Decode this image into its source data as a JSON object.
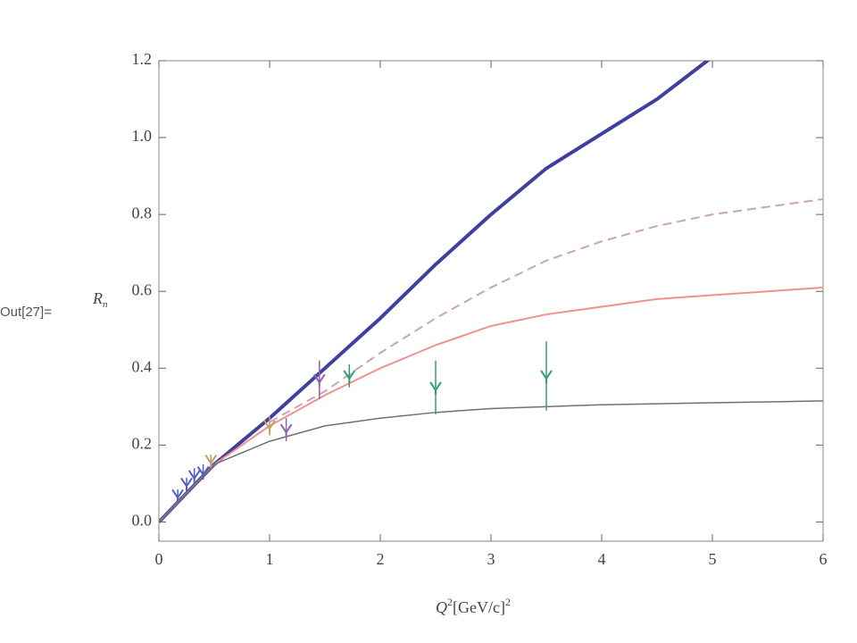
{
  "chart_data": {
    "type": "line",
    "prompt_label": "Out[27]=",
    "y_label": {
      "main": "R",
      "sub": "n"
    },
    "x_label": {
      "main": "Q",
      "sup": "2",
      "unit": "[GeV/c]",
      "unit_sup": "2"
    },
    "xlim": [
      0,
      6
    ],
    "ylim": [
      -0.05,
      1.2
    ],
    "xticks": [
      0,
      1,
      2,
      3,
      4,
      5,
      6
    ],
    "yticks": [
      {
        "value": 0,
        "label": "0.0"
      },
      0.2,
      0.4,
      0.6,
      0.8,
      {
        "value": 1,
        "label": "1.0"
      },
      1.2
    ],
    "series": [
      {
        "color": "#3f3fa0",
        "width": 4,
        "dashed": false,
        "x": [
          0,
          0.5,
          1,
          1.5,
          2,
          2.5,
          3,
          3.5,
          4,
          4.5,
          5
        ],
        "values": [
          0,
          0.15,
          0.27,
          0.4,
          0.53,
          0.67,
          0.8,
          0.92,
          1.01,
          1.1,
          1.21
        ]
      },
      {
        "color": "#c8a0c8",
        "width": 2,
        "dashed": true,
        "x": [
          1,
          1.5,
          2,
          2.5,
          3,
          3.5,
          4,
          4.5,
          5,
          5.5,
          6
        ],
        "values": [
          0.26,
          0.34,
          0.44,
          0.53,
          0.61,
          0.68,
          0.73,
          0.77,
          0.8,
          0.82,
          0.84
        ]
      },
      {
        "color": "#f29090",
        "width": 2,
        "dashed": false,
        "x": [
          0,
          0.5,
          1,
          1.5,
          2,
          2.5,
          3,
          3.5,
          4,
          4.5,
          5,
          5.5,
          6
        ],
        "values": [
          0,
          0.15,
          0.25,
          0.33,
          0.4,
          0.46,
          0.51,
          0.54,
          0.56,
          0.58,
          0.59,
          0.6,
          0.61
        ]
      },
      {
        "color": "#707070",
        "width": 1.5,
        "dashed": false,
        "x": [
          0,
          0.5,
          1,
          1.5,
          2,
          2.5,
          3,
          3.5,
          4,
          5,
          6
        ],
        "values": [
          0,
          0.15,
          0.21,
          0.25,
          0.27,
          0.285,
          0.295,
          0.3,
          0.305,
          0.31,
          0.315
        ]
      }
    ],
    "points": [
      {
        "color": "#5060c0",
        "x": [
          0.17,
          0.25,
          0.32,
          0.4
        ],
        "values": [
          0.07,
          0.1,
          0.12,
          0.13
        ],
        "errors": [
          0.015,
          0.015,
          0.02,
          0.02
        ]
      },
      {
        "color": "#c0a060",
        "x": [
          0.47,
          1.0
        ],
        "values": [
          0.16,
          0.25
        ],
        "errors": [
          0.015,
          0.025
        ]
      },
      {
        "color": "#9060b0",
        "x": [
          1.15,
          1.45
        ],
        "values": [
          0.24,
          0.37
        ],
        "errors": [
          0.03,
          0.05
        ]
      },
      {
        "color": "#30a070",
        "x": [
          1.72,
          2.5,
          3.5
        ],
        "values": [
          0.38,
          0.35,
          0.38
        ],
        "errors": [
          0.03,
          0.07,
          0.09
        ]
      }
    ]
  }
}
